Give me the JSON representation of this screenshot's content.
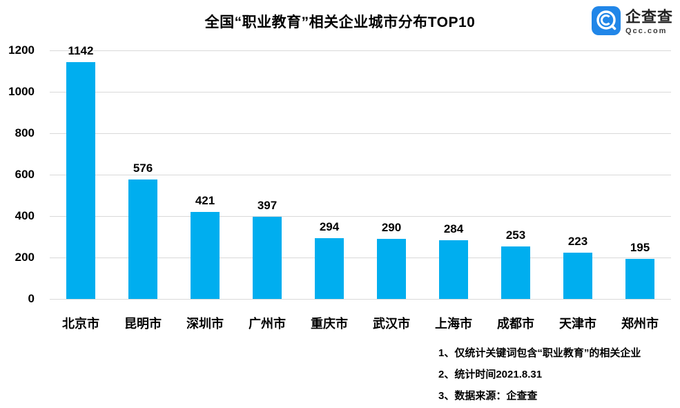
{
  "title": "全国“职业教育”相关企业城市分布TOP10",
  "logo": {
    "name": "企查查",
    "domain": "Qcc.com",
    "brand_blue": "#2186E8"
  },
  "chart_data": {
    "type": "bar",
    "title": "全国“职业教育”相关企业城市分布TOP10",
    "categories": [
      "北京市",
      "昆明市",
      "深圳市",
      "广州市",
      "重庆市",
      "武汉市",
      "上海市",
      "成都市",
      "天津市",
      "郑州市"
    ],
    "values": [
      1142,
      576,
      421,
      397,
      294,
      290,
      284,
      253,
      223,
      195
    ],
    "xlabel": "",
    "ylabel": "",
    "ylim": [
      0,
      1200
    ],
    "yticks": [
      0,
      200,
      400,
      600,
      800,
      1000,
      1200
    ],
    "grid": true,
    "legend": false,
    "bar_color": "#00AEEF",
    "gridline_color": "#D9D9D9",
    "label_color": "#000000"
  },
  "footnotes": [
    "1、仅统计关键词包含“职业教育”的相关企业",
    "2、统计时间2021.8.31",
    "3、数据来源：企查查"
  ]
}
